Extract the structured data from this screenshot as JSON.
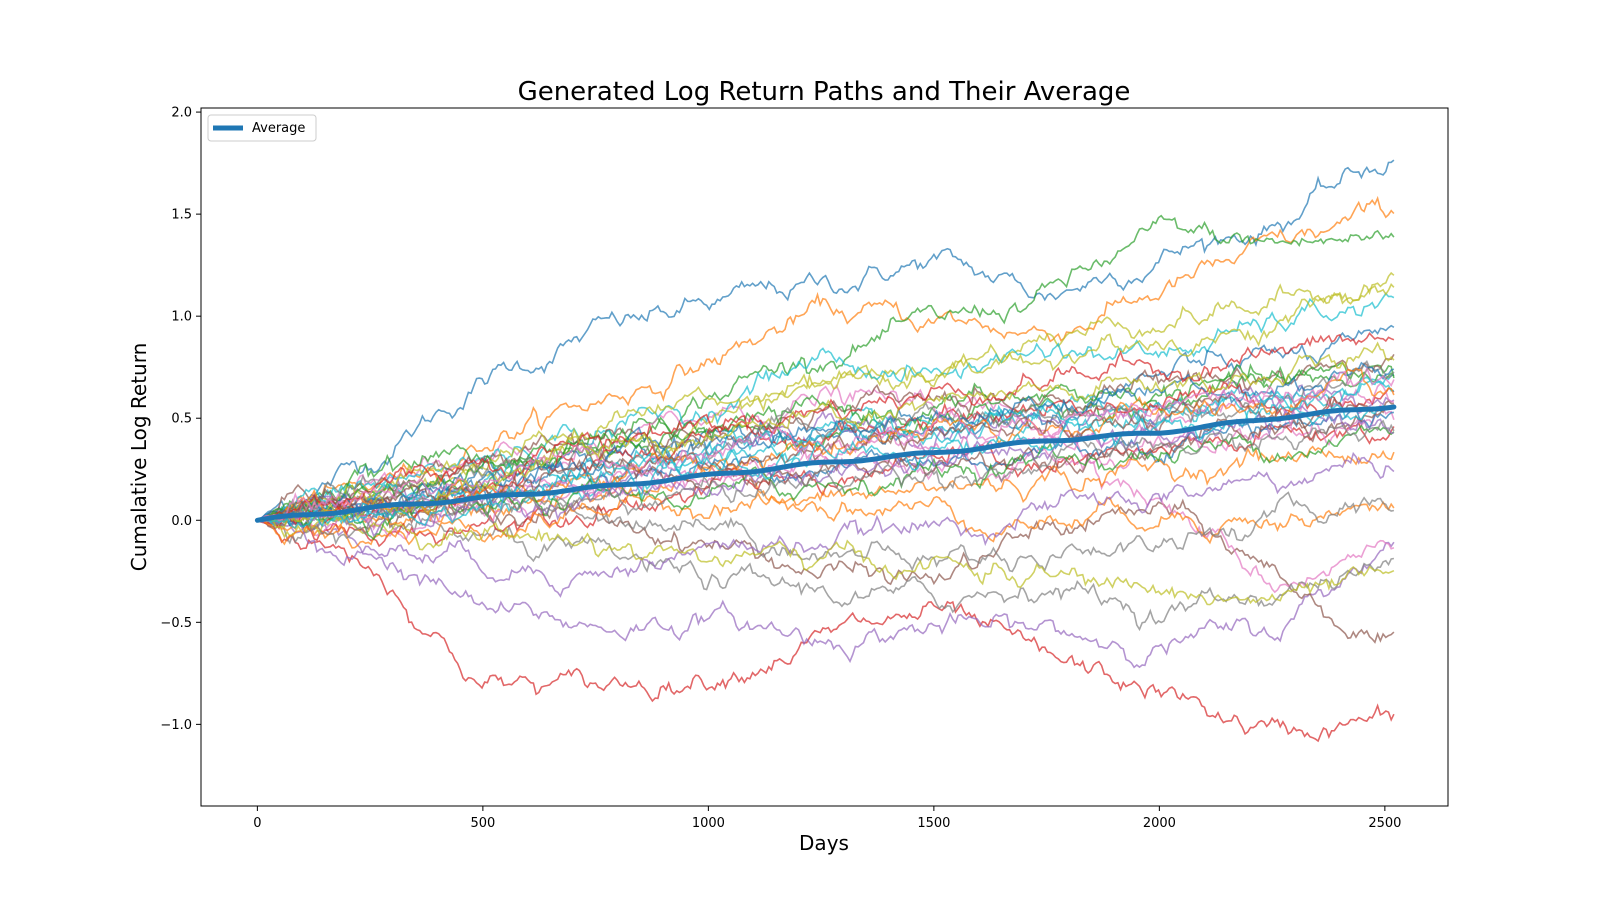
{
  "chart_data": {
    "type": "line",
    "title": "Generated Log Return Paths and Their Average",
    "xlabel": "Days",
    "ylabel": "Cumalative Log Return",
    "xlim": [
      -125,
      2640
    ],
    "ylim": [
      -1.4,
      2.02
    ],
    "xticks": [
      0,
      500,
      1000,
      1500,
      2000,
      2500
    ],
    "xtick_labels": [
      "0",
      "500",
      "1000",
      "1500",
      "2000",
      "2500"
    ],
    "yticks": [
      -1.0,
      -0.5,
      0.0,
      0.5,
      1.0,
      1.5,
      2.0
    ],
    "ytick_labels": [
      "−1.0",
      "−0.5",
      "0.0",
      "0.5",
      "1.0",
      "1.5",
      "2.0"
    ],
    "grid": false,
    "legend": {
      "position": "top-left",
      "entries": [
        "Average"
      ]
    },
    "n_days": 2520,
    "path_colors": [
      "#1f77b4",
      "#ff7f0e",
      "#2ca02c",
      "#d62728",
      "#9467bd",
      "#8c564b",
      "#e377c2",
      "#7f7f7f",
      "#bcbd22",
      "#17becf"
    ],
    "series": [
      {
        "name": "Average",
        "color": "#1f77b4",
        "x": [
          0,
          250,
          500,
          750,
          1000,
          1250,
          1500,
          1750,
          2000,
          2250,
          2520
        ],
        "y": [
          0.0,
          0.06,
          0.11,
          0.16,
          0.22,
          0.28,
          0.33,
          0.39,
          0.43,
          0.5,
          0.56
        ]
      }
    ],
    "paths": [
      {
        "x": [
          0,
          250,
          500,
          750,
          1000,
          1250,
          1500,
          1750,
          2000,
          2250,
          2520
        ],
        "y": [
          0.0,
          0.3,
          0.68,
          0.92,
          1.05,
          1.15,
          1.27,
          1.1,
          1.3,
          1.45,
          1.78
        ]
      },
      {
        "x": [
          0,
          250,
          500,
          750,
          1000,
          1250,
          1500,
          1750,
          2000,
          2250,
          2520
        ],
        "y": [
          0.0,
          0.15,
          0.4,
          0.58,
          0.78,
          1.02,
          0.98,
          0.92,
          1.12,
          1.32,
          1.51
        ]
      },
      {
        "x": [
          0,
          250,
          500,
          750,
          1000,
          1250,
          1500,
          1750,
          2000,
          2250,
          2520
        ],
        "y": [
          0.0,
          0.1,
          0.22,
          0.4,
          0.62,
          0.82,
          0.95,
          1.1,
          1.4,
          1.35,
          1.38
        ]
      },
      {
        "x": [
          0,
          250,
          500,
          750,
          1000,
          1250,
          1500,
          1750,
          2000,
          2250,
          2520
        ],
        "y": [
          0.0,
          -0.2,
          -0.8,
          -0.82,
          -0.75,
          -0.58,
          -0.45,
          -0.7,
          -0.85,
          -1.05,
          -0.97
        ]
      },
      {
        "x": [
          0,
          250,
          500,
          750,
          1000,
          1250,
          1500,
          1750,
          2000,
          2250,
          2520
        ],
        "y": [
          0.0,
          -0.15,
          -0.45,
          -0.52,
          -0.48,
          -0.58,
          -0.52,
          -0.55,
          -0.6,
          -0.55,
          -0.08
        ]
      },
      {
        "x": [
          0,
          250,
          500,
          750,
          1000,
          1250,
          1500,
          1750,
          2000,
          2250,
          2520
        ],
        "y": [
          0.0,
          0.05,
          0.1,
          0.0,
          -0.1,
          -0.25,
          -0.3,
          -0.05,
          0.05,
          -0.25,
          -0.65
        ]
      },
      {
        "x": [
          0,
          250,
          500,
          750,
          1000,
          1250,
          1500,
          1750,
          2000,
          2250,
          2520
        ],
        "y": [
          0.0,
          0.2,
          0.25,
          0.32,
          0.5,
          0.6,
          0.55,
          0.5,
          0.1,
          -0.3,
          -0.12
        ]
      },
      {
        "x": [
          0,
          250,
          500,
          750,
          1000,
          1250,
          1500,
          1750,
          2000,
          2250,
          2520
        ],
        "y": [
          0.0,
          -0.05,
          -0.1,
          -0.2,
          -0.3,
          -0.35,
          -0.4,
          -0.3,
          -0.45,
          -0.35,
          -0.23
        ]
      },
      {
        "x": [
          0,
          250,
          500,
          750,
          1000,
          1250,
          1500,
          1750,
          2000,
          2250,
          2520
        ],
        "y": [
          0.0,
          0.1,
          0.25,
          0.35,
          0.5,
          0.7,
          0.75,
          0.9,
          1.0,
          1.05,
          1.22
        ]
      },
      {
        "x": [
          0,
          250,
          500,
          750,
          1000,
          1250,
          1500,
          1750,
          2000,
          2250,
          2520
        ],
        "y": [
          0.0,
          0.15,
          0.3,
          0.45,
          0.55,
          0.8,
          0.7,
          0.85,
          0.8,
          0.95,
          1.07
        ]
      },
      {
        "x": [
          0,
          250,
          500,
          750,
          1000,
          1250,
          1500,
          1750,
          2000,
          2250,
          2520
        ],
        "y": [
          0.0,
          0.05,
          0.2,
          0.3,
          0.4,
          0.35,
          0.45,
          0.5,
          0.7,
          0.8,
          0.84
        ]
      },
      {
        "x": [
          0,
          250,
          500,
          750,
          1000,
          1250,
          1500,
          1750,
          2000,
          2250,
          2520
        ],
        "y": [
          0.0,
          0.0,
          0.05,
          0.15,
          0.2,
          0.1,
          0.05,
          0.0,
          0.05,
          0.0,
          0.05
        ]
      },
      {
        "x": [
          0,
          250,
          500,
          750,
          1000,
          1250,
          1500,
          1750,
          2000,
          2250,
          2520
        ],
        "y": [
          0.0,
          0.2,
          0.35,
          0.3,
          0.45,
          0.4,
          0.5,
          0.55,
          0.6,
          0.65,
          0.7
        ]
      },
      {
        "x": [
          0,
          250,
          500,
          750,
          1000,
          1250,
          1500,
          1750,
          2000,
          2250,
          2520
        ],
        "y": [
          0.0,
          -0.1,
          0.0,
          0.1,
          0.15,
          0.2,
          0.3,
          0.25,
          0.3,
          0.4,
          0.45
        ]
      },
      {
        "x": [
          0,
          250,
          500,
          750,
          1000,
          1250,
          1500,
          1750,
          2000,
          2250,
          2520
        ],
        "y": [
          0.0,
          0.08,
          0.15,
          0.25,
          0.3,
          0.45,
          0.4,
          0.5,
          0.55,
          0.62,
          0.6
        ]
      },
      {
        "x": [
          0,
          250,
          500,
          750,
          1000,
          1250,
          1500,
          1750,
          2000,
          2250,
          2520
        ],
        "y": [
          0.0,
          0.12,
          0.28,
          0.38,
          0.42,
          0.5,
          0.58,
          0.62,
          0.7,
          0.72,
          0.78
        ]
      },
      {
        "x": [
          0,
          250,
          500,
          750,
          1000,
          1250,
          1500,
          1750,
          2000,
          2250,
          2520
        ],
        "y": [
          0.0,
          -0.05,
          0.05,
          0.12,
          0.2,
          0.25,
          0.2,
          0.3,
          0.35,
          0.42,
          0.48
        ]
      },
      {
        "x": [
          0,
          250,
          500,
          750,
          1000,
          1250,
          1500,
          1750,
          2000,
          2250,
          2520
        ],
        "y": [
          0.0,
          0.05,
          0.1,
          0.05,
          0.0,
          -0.15,
          -0.2,
          -0.15,
          -0.1,
          0.0,
          0.1
        ]
      },
      {
        "x": [
          0,
          250,
          500,
          750,
          1000,
          1250,
          1500,
          1750,
          2000,
          2250,
          2520
        ],
        "y": [
          0.0,
          0.18,
          0.32,
          0.48,
          0.6,
          0.72,
          0.66,
          0.8,
          0.88,
          0.95,
          1.17
        ]
      },
      {
        "x": [
          0,
          250,
          500,
          750,
          1000,
          1250,
          1500,
          1750,
          2000,
          2250,
          2520
        ],
        "y": [
          0.0,
          0.02,
          0.08,
          0.18,
          0.3,
          0.38,
          0.42,
          0.5,
          0.5,
          0.58,
          0.65
        ]
      },
      {
        "x": [
          0,
          250,
          500,
          750,
          1000,
          1250,
          1500,
          1750,
          2000,
          2250,
          2520
        ],
        "y": [
          0.0,
          0.1,
          0.18,
          0.22,
          0.25,
          0.3,
          0.28,
          0.35,
          0.4,
          0.48,
          0.52
        ]
      },
      {
        "x": [
          0,
          250,
          500,
          750,
          1000,
          1250,
          1500,
          1750,
          2000,
          2250,
          2520
        ],
        "y": [
          0.0,
          -0.08,
          -0.02,
          0.05,
          0.1,
          0.08,
          0.15,
          0.2,
          0.25,
          0.3,
          0.35
        ]
      },
      {
        "x": [
          0,
          250,
          500,
          750,
          1000,
          1250,
          1500,
          1750,
          2000,
          2250,
          2520
        ],
        "y": [
          0.0,
          0.14,
          0.24,
          0.36,
          0.44,
          0.52,
          0.55,
          0.6,
          0.62,
          0.66,
          0.72
        ]
      },
      {
        "x": [
          0,
          250,
          500,
          750,
          1000,
          1250,
          1500,
          1750,
          2000,
          2250,
          2520
        ],
        "y": [
          0.0,
          0.06,
          0.12,
          0.28,
          0.35,
          0.42,
          0.48,
          0.56,
          0.58,
          0.6,
          0.62
        ]
      },
      {
        "x": [
          0,
          250,
          500,
          750,
          1000,
          1250,
          1500,
          1750,
          2000,
          2250,
          2520
        ],
        "y": [
          0.0,
          -0.12,
          -0.2,
          -0.25,
          -0.15,
          -0.1,
          -0.05,
          0.05,
          0.1,
          0.2,
          0.28
        ]
      },
      {
        "x": [
          0,
          250,
          500,
          750,
          1000,
          1250,
          1500,
          1750,
          2000,
          2250,
          2520
        ],
        "y": [
          0.0,
          0.08,
          0.14,
          0.2,
          0.18,
          0.22,
          0.3,
          0.35,
          0.38,
          0.42,
          0.55
        ]
      },
      {
        "x": [
          0,
          250,
          500,
          750,
          1000,
          1250,
          1500,
          1750,
          2000,
          2250,
          2520
        ],
        "y": [
          0.0,
          0.04,
          0.1,
          0.15,
          0.25,
          0.32,
          0.38,
          0.44,
          0.48,
          0.55,
          0.58
        ]
      },
      {
        "x": [
          0,
          250,
          500,
          750,
          1000,
          1250,
          1500,
          1750,
          2000,
          2250,
          2520
        ],
        "y": [
          0.0,
          0.16,
          0.26,
          0.3,
          0.38,
          0.44,
          0.5,
          0.48,
          0.52,
          0.58,
          0.68
        ]
      },
      {
        "x": [
          0,
          250,
          500,
          750,
          1000,
          1250,
          1500,
          1750,
          2000,
          2250,
          2520
        ],
        "y": [
          0.0,
          0.0,
          -0.05,
          -0.1,
          -0.18,
          -0.2,
          -0.22,
          -0.28,
          -0.35,
          -0.4,
          -0.3
        ]
      },
      {
        "x": [
          0,
          250,
          500,
          750,
          1000,
          1250,
          1500,
          1750,
          2000,
          2250,
          2520
        ],
        "y": [
          0.0,
          0.1,
          0.2,
          0.26,
          0.34,
          0.4,
          0.44,
          0.5,
          0.54,
          0.6,
          0.64
        ]
      },
      {
        "x": [
          0,
          250,
          500,
          750,
          1000,
          1250,
          1500,
          1750,
          2000,
          2250,
          2520
        ],
        "y": [
          0.0,
          0.12,
          0.2,
          0.3,
          0.38,
          0.46,
          0.52,
          0.58,
          0.64,
          0.68,
          0.74
        ]
      },
      {
        "x": [
          0,
          250,
          500,
          750,
          1000,
          1250,
          1500,
          1750,
          2000,
          2250,
          2520
        ],
        "y": [
          0.0,
          0.06,
          0.15,
          0.22,
          0.28,
          0.34,
          0.4,
          0.46,
          0.52,
          0.56,
          0.6
        ]
      },
      {
        "x": [
          0,
          250,
          500,
          750,
          1000,
          1250,
          1500,
          1750,
          2000,
          2250,
          2520
        ],
        "y": [
          0.0,
          -0.04,
          0.02,
          0.1,
          0.12,
          0.18,
          0.25,
          0.3,
          0.32,
          0.38,
          0.42
        ]
      },
      {
        "x": [
          0,
          250,
          500,
          750,
          1000,
          1250,
          1500,
          1750,
          2000,
          2250,
          2520
        ],
        "y": [
          0.0,
          0.18,
          0.3,
          0.4,
          0.48,
          0.55,
          0.62,
          0.7,
          0.75,
          0.82,
          0.88
        ]
      },
      {
        "x": [
          0,
          250,
          500,
          750,
          1000,
          1250,
          1500,
          1750,
          2000,
          2250,
          2520
        ],
        "y": [
          0.0,
          0.02,
          0.06,
          0.12,
          0.18,
          0.22,
          0.3,
          0.34,
          0.4,
          0.45,
          0.5
        ]
      },
      {
        "x": [
          0,
          250,
          500,
          750,
          1000,
          1250,
          1500,
          1750,
          2000,
          2250,
          2520
        ],
        "y": [
          0.0,
          0.08,
          0.16,
          0.22,
          0.26,
          0.35,
          0.45,
          0.4,
          0.48,
          0.52,
          0.57
        ]
      },
      {
        "x": [
          0,
          250,
          500,
          750,
          1000,
          1250,
          1500,
          1750,
          2000,
          2250,
          2520
        ],
        "y": [
          0.0,
          0.14,
          0.22,
          0.3,
          0.36,
          0.4,
          0.46,
          0.52,
          0.56,
          0.62,
          0.66
        ]
      },
      {
        "x": [
          0,
          250,
          500,
          750,
          1000,
          1250,
          1500,
          1750,
          2000,
          2250,
          2520
        ],
        "y": [
          0.0,
          0.0,
          0.04,
          0.08,
          0.14,
          0.2,
          0.24,
          0.28,
          0.34,
          0.38,
          0.44
        ]
      },
      {
        "x": [
          0,
          250,
          500,
          750,
          1000,
          1250,
          1500,
          1750,
          2000,
          2250,
          2520
        ],
        "y": [
          0.0,
          0.1,
          0.22,
          0.34,
          0.42,
          0.48,
          0.54,
          0.6,
          0.66,
          0.72,
          0.78
        ]
      },
      {
        "x": [
          0,
          250,
          500,
          750,
          1000,
          1250,
          1500,
          1750,
          2000,
          2250,
          2520
        ],
        "y": [
          0.0,
          0.06,
          0.1,
          0.18,
          0.24,
          0.3,
          0.36,
          0.4,
          0.46,
          0.5,
          0.54
        ]
      }
    ]
  }
}
